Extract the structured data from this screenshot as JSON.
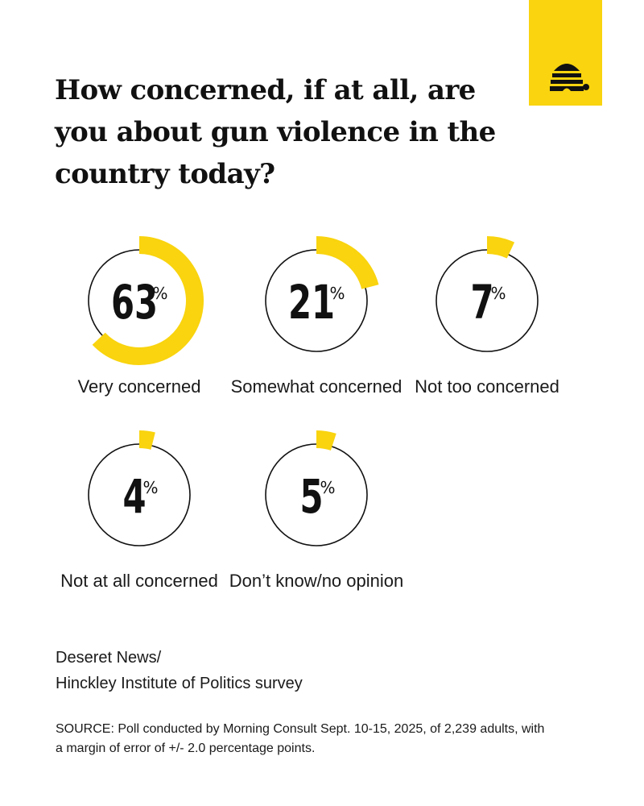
{
  "title": "How concerned, if at all, are you about gun violence in the country today?",
  "colors": {
    "accent": "#f9d40f",
    "ring": "#111111",
    "text": "#111111",
    "background": "#ffffff"
  },
  "logo": {
    "icon": "beehive-logo-icon"
  },
  "chart_data": {
    "type": "pie",
    "title": "How concerned, if at all, are you about gun violence in the country today?",
    "unit": "%",
    "categories": [
      "Very concerned",
      "Somewhat concerned",
      "Not too concerned",
      "Not at all concerned",
      "Don’t know/no opinion"
    ],
    "values": [
      63,
      21,
      7,
      4,
      5
    ],
    "value_labels": [
      "63",
      "21",
      "7",
      "4",
      "5"
    ]
  },
  "credit": {
    "line1": "Deseret News/",
    "line2": "Hinckley Institute of Politics survey"
  },
  "source": "SOURCE: Poll conducted by Morning Consult Sept. 10-15, 2025, of 2,239 adults, with a margin of error of +/- 2.0 percentage points."
}
